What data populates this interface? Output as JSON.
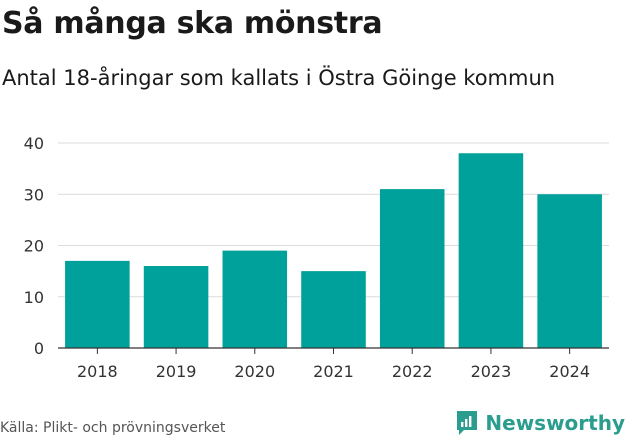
{
  "chart_data": {
    "type": "bar",
    "title": "Så många ska mönstra",
    "subtitle": "Antal 18-åringar som kallats i Östra Göinge kommun",
    "categories": [
      "2018",
      "2019",
      "2020",
      "2021",
      "2022",
      "2023",
      "2024"
    ],
    "values": [
      17,
      16,
      19,
      15,
      31,
      38,
      30
    ],
    "ylim": [
      0,
      40
    ],
    "yticks": [
      0,
      10,
      20,
      30,
      40
    ],
    "grid": true,
    "legend": "none",
    "bar_color": "#00a19a"
  },
  "footer": {
    "source": "Källa: Plikt- och prövningsverket",
    "brand_name": "Newsworthy",
    "brand_color": "#2a9d8f"
  }
}
